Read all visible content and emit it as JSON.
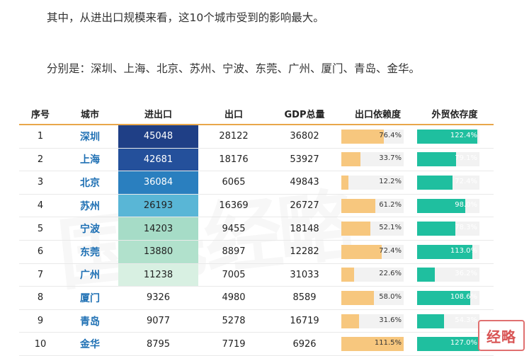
{
  "intro": {
    "line1": "其中，从进出口规模来看，这10个城市受到的影响最大。",
    "line2": "分别是：深圳、上海、北京、苏州、宁波、东莞、广州、厦门、青岛、金华。"
  },
  "watermark": "国民经略",
  "logo_text": "经略",
  "table": {
    "headers": [
      "序号",
      "城市",
      "进出口",
      "出口",
      "GDP总量",
      "出口依赖度",
      "外贸依存度"
    ],
    "rows": [
      {
        "idx": "1",
        "city": "深圳",
        "trade": "45048",
        "export": "28122",
        "gdp": "36802",
        "dep": "76.4%",
        "dep_v": 76.4,
        "frd": "122.4%",
        "frd_v": 122.4,
        "trade_color": "#1f3f86"
      },
      {
        "idx": "2",
        "city": "上海",
        "trade": "42681",
        "export": "18176",
        "gdp": "53927",
        "dep": "33.7%",
        "dep_v": 33.7,
        "frd": "79.1%",
        "frd_v": 79.1,
        "trade_color": "#24509b"
      },
      {
        "idx": "3",
        "city": "北京",
        "trade": "36084",
        "export": "6065",
        "gdp": "49843",
        "dep": "12.2%",
        "dep_v": 12.2,
        "frd": "72.4%",
        "frd_v": 72.4,
        "trade_color": "#2a7fbf"
      },
      {
        "idx": "4",
        "city": "苏州",
        "trade": "26193",
        "export": "16369",
        "gdp": "26727",
        "dep": "61.2%",
        "dep_v": 61.2,
        "frd": "98.0%",
        "frd_v": 98.0,
        "trade_color": "#59b6d6"
      },
      {
        "idx": "5",
        "city": "宁波",
        "trade": "14203",
        "export": "9455",
        "gdp": "18148",
        "dep": "52.1%",
        "dep_v": 52.1,
        "frd": "78.3%",
        "frd_v": 78.3,
        "trade_color": "#a6dcc7"
      },
      {
        "idx": "6",
        "city": "东莞",
        "trade": "13880",
        "export": "8897",
        "gdp": "12282",
        "dep": "72.4%",
        "dep_v": 72.4,
        "frd": "113.0%",
        "frd_v": 113.0,
        "trade_color": "#b1e1cc"
      },
      {
        "idx": "7",
        "city": "广州",
        "trade": "11238",
        "export": "7005",
        "gdp": "31033",
        "dep": "22.6%",
        "dep_v": 22.6,
        "frd": "36.2%",
        "frd_v": 36.2,
        "trade_color": "#d8f0e2"
      },
      {
        "idx": "8",
        "city": "厦门",
        "trade": "9326",
        "export": "4980",
        "gdp": "8589",
        "dep": "58.0%",
        "dep_v": 58.0,
        "frd": "108.6%",
        "frd_v": 108.6,
        "trade_color": "#ffffff"
      },
      {
        "idx": "9",
        "city": "青岛",
        "trade": "9077",
        "export": "5278",
        "gdp": "16719",
        "dep": "31.6%",
        "dep_v": 31.6,
        "frd": "54.3%",
        "frd_v": 54.3,
        "trade_color": "#ffffff"
      },
      {
        "idx": "10",
        "city": "金华",
        "trade": "8795",
        "export": "7719",
        "gdp": "6926",
        "dep": "111.5%",
        "dep_v": 111.5,
        "frd": "127.0%",
        "frd_v": 127.0,
        "trade_color": "#ffffff"
      }
    ]
  },
  "colors": {
    "header_rule": "#e8a74a",
    "city_text": "#1d6fb3",
    "dependency_bar": "#f7c77e",
    "foreign_trade_bar": "#1fbf9f"
  }
}
